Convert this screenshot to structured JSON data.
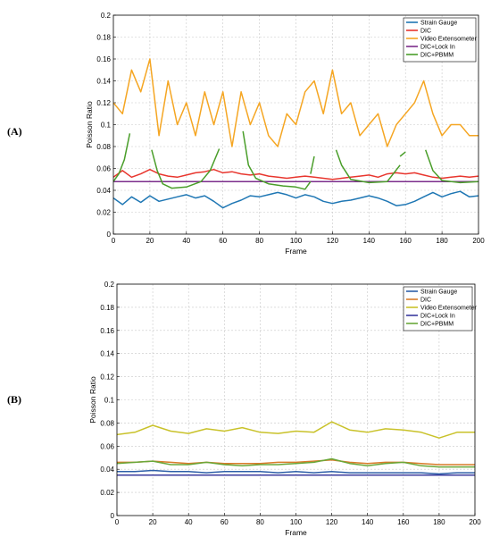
{
  "chart_data": [
    {
      "panel_label": "(A)",
      "type": "line",
      "xlabel": "Frame",
      "ylabel": "Poisson Ratio",
      "xlim": [
        0,
        200
      ],
      "ylim": [
        0,
        0.2
      ],
      "xticks": [
        "0",
        "20",
        "40",
        "60",
        "80",
        "100",
        "120",
        "140",
        "160",
        "180",
        "200"
      ],
      "yticks": [
        "0",
        "0.02",
        "0.04",
        "0.06",
        "0.08",
        "0.1",
        "0.12",
        "0.14",
        "0.16",
        "0.18",
        "0.2"
      ],
      "grid": true,
      "legend_position": "top-right",
      "series": [
        {
          "name": "Strain Gauge",
          "color": "#1f77b4",
          "x": [
            0,
            5,
            10,
            15,
            20,
            25,
            30,
            35,
            40,
            45,
            50,
            55,
            60,
            65,
            70,
            75,
            80,
            85,
            90,
            95,
            100,
            105,
            110,
            115,
            120,
            125,
            130,
            135,
            140,
            145,
            150,
            155,
            160,
            165,
            170,
            175,
            180,
            185,
            190,
            195,
            200
          ],
          "y": [
            0.033,
            0.027,
            0.034,
            0.029,
            0.035,
            0.03,
            0.032,
            0.034,
            0.036,
            0.033,
            0.035,
            0.03,
            0.024,
            0.028,
            0.031,
            0.035,
            0.034,
            0.036,
            0.038,
            0.036,
            0.033,
            0.036,
            0.034,
            0.03,
            0.028,
            0.03,
            0.031,
            0.033,
            0.035,
            0.033,
            0.03,
            0.026,
            0.027,
            0.03,
            0.034,
            0.038,
            0.034,
            0.037,
            0.039,
            0.034,
            0.035
          ]
        },
        {
          "name": "DIC",
          "color": "#e8362e",
          "x": [
            0,
            5,
            10,
            15,
            20,
            25,
            30,
            35,
            40,
            45,
            50,
            55,
            60,
            65,
            70,
            75,
            80,
            85,
            90,
            95,
            100,
            105,
            110,
            115,
            120,
            125,
            130,
            135,
            140,
            145,
            150,
            155,
            160,
            165,
            170,
            175,
            180,
            185,
            190,
            195,
            200
          ],
          "y": [
            0.052,
            0.058,
            0.052,
            0.055,
            0.059,
            0.055,
            0.053,
            0.052,
            0.054,
            0.056,
            0.057,
            0.059,
            0.056,
            0.057,
            0.055,
            0.054,
            0.055,
            0.053,
            0.052,
            0.051,
            0.052,
            0.053,
            0.052,
            0.051,
            0.05,
            0.051,
            0.052,
            0.053,
            0.054,
            0.052,
            0.055,
            0.056,
            0.055,
            0.056,
            0.054,
            0.052,
            0.051,
            0.052,
            0.053,
            0.052,
            0.053
          ]
        },
        {
          "name": "Video Extensometer",
          "color": "#f5a623",
          "x": [
            0,
            5,
            10,
            15,
            20,
            25,
            30,
            35,
            40,
            45,
            50,
            55,
            60,
            65,
            70,
            75,
            80,
            85,
            90,
            95,
            100,
            105,
            110,
            115,
            120,
            125,
            130,
            135,
            140,
            145,
            150,
            155,
            160,
            165,
            170,
            175,
            180,
            185,
            190,
            195,
            200
          ],
          "y": [
            0.12,
            0.11,
            0.15,
            0.13,
            0.16,
            0.09,
            0.14,
            0.1,
            0.12,
            0.09,
            0.13,
            0.1,
            0.13,
            0.08,
            0.13,
            0.1,
            0.12,
            0.09,
            0.08,
            0.11,
            0.1,
            0.13,
            0.14,
            0.11,
            0.15,
            0.11,
            0.12,
            0.09,
            0.1,
            0.11,
            0.08,
            0.1,
            0.11,
            0.12,
            0.14,
            0.11,
            0.09,
            0.1,
            0.1,
            0.09,
            0.09
          ]
        },
        {
          "name": "DIC+Lock In",
          "color": "#7b2d8b",
          "x": [
            0,
            200
          ],
          "y": [
            0.048,
            0.048
          ]
        },
        {
          "name": "DIC+PBMM",
          "color": "#4a9e2a",
          "segments": [
            {
              "x": [
                0,
                3,
                6,
                9
              ],
              "y": [
                0.048,
                0.055,
                0.068,
                0.092
              ]
            },
            {
              "x": [
                21,
                24,
                27,
                32,
                40,
                48,
                53,
                58
              ],
              "y": [
                0.077,
                0.058,
                0.046,
                0.042,
                0.043,
                0.048,
                0.058,
                0.078
              ]
            },
            {
              "x": [
                71,
                74,
                78,
                85,
                93,
                100,
                105,
                108
              ],
              "y": [
                0.094,
                0.063,
                0.051,
                0.046,
                0.044,
                0.043,
                0.041,
                0.048
              ]
            },
            {
              "x": [
                108,
                110
              ],
              "y": [
                0.055,
                0.071
              ]
            },
            {
              "x": [
                122,
                125,
                130,
                140,
                150,
                157
              ],
              "y": [
                0.077,
                0.063,
                0.05,
                0.047,
                0.048,
                0.063
              ]
            },
            {
              "x": [
                157,
                160
              ],
              "y": [
                0.071,
                0.075
              ]
            },
            {
              "x": [
                171,
                175,
                180,
                190,
                200
              ],
              "y": [
                0.077,
                0.058,
                0.049,
                0.047,
                0.048
              ]
            }
          ]
        }
      ]
    },
    {
      "panel_label": "(B)",
      "type": "line",
      "xlabel": "Frame",
      "ylabel": "Poisson Ratio",
      "xlim": [
        0,
        200
      ],
      "ylim": [
        0,
        0.2
      ],
      "xticks": [
        "0",
        "20",
        "40",
        "60",
        "80",
        "100",
        "120",
        "140",
        "160",
        "180",
        "200"
      ],
      "yticks": [
        "0",
        "0.02",
        "0.04",
        "0.06",
        "0.08",
        "0.1",
        "0.12",
        "0.14",
        "0.16",
        "0.18",
        "0.2"
      ],
      "grid": true,
      "legend_position": "top-right",
      "series": [
        {
          "name": "Strain Gauge",
          "color": "#2e5fa8",
          "x": [
            0,
            10,
            20,
            30,
            40,
            50,
            60,
            70,
            80,
            90,
            100,
            110,
            120,
            130,
            140,
            150,
            160,
            170,
            180,
            190,
            200
          ],
          "y": [
            0.038,
            0.038,
            0.039,
            0.038,
            0.038,
            0.037,
            0.038,
            0.038,
            0.038,
            0.037,
            0.038,
            0.037,
            0.038,
            0.037,
            0.037,
            0.037,
            0.037,
            0.037,
            0.036,
            0.037,
            0.037
          ]
        },
        {
          "name": "DIC",
          "color": "#d97b2a",
          "x": [
            0,
            10,
            20,
            30,
            40,
            50,
            60,
            70,
            80,
            90,
            100,
            110,
            120,
            130,
            140,
            150,
            160,
            170,
            180,
            190,
            200
          ],
          "y": [
            0.046,
            0.046,
            0.047,
            0.046,
            0.045,
            0.046,
            0.045,
            0.045,
            0.045,
            0.046,
            0.046,
            0.047,
            0.048,
            0.046,
            0.045,
            0.046,
            0.046,
            0.045,
            0.044,
            0.044,
            0.044
          ]
        },
        {
          "name": "Video Extensometer",
          "color": "#c9c22a",
          "x": [
            0,
            10,
            20,
            30,
            40,
            50,
            60,
            70,
            80,
            90,
            100,
            110,
            120,
            130,
            140,
            150,
            160,
            170,
            180,
            190,
            200
          ],
          "y": [
            0.07,
            0.072,
            0.078,
            0.073,
            0.071,
            0.075,
            0.073,
            0.076,
            0.072,
            0.071,
            0.073,
            0.072,
            0.081,
            0.074,
            0.072,
            0.075,
            0.074,
            0.072,
            0.067,
            0.072,
            0.072
          ]
        },
        {
          "name": "DIC+Lock In",
          "color": "#3b3b9e",
          "x": [
            0,
            200
          ],
          "y": [
            0.035,
            0.035
          ]
        },
        {
          "name": "DIC+PBMM",
          "color": "#6aa83a",
          "x": [
            0,
            10,
            20,
            30,
            40,
            50,
            60,
            70,
            80,
            90,
            100,
            110,
            120,
            130,
            140,
            150,
            160,
            170,
            180,
            190,
            200
          ],
          "y": [
            0.045,
            0.046,
            0.047,
            0.044,
            0.044,
            0.046,
            0.044,
            0.043,
            0.044,
            0.044,
            0.045,
            0.046,
            0.049,
            0.045,
            0.043,
            0.045,
            0.046,
            0.043,
            0.042,
            0.042,
            0.042
          ]
        }
      ]
    }
  ]
}
